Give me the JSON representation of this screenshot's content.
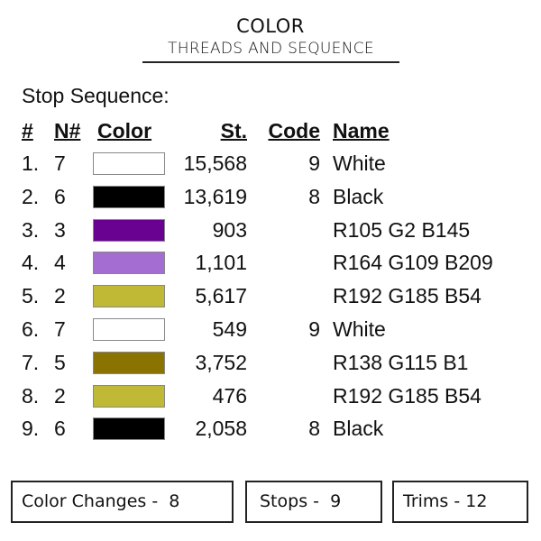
{
  "header": {
    "title": "COLOR",
    "subtitle": "THREADS AND SEQUENCE"
  },
  "section_label": "Stop Sequence:",
  "columns": {
    "num": "#",
    "n": "N#",
    "color": "Color",
    "stitches": "St.",
    "code": "Code",
    "name": "Name"
  },
  "rows": [
    {
      "num": "1.",
      "n": "7",
      "color": "#FFFFFF",
      "stitches": "15,568",
      "code": "9",
      "name": "White"
    },
    {
      "num": "2.",
      "n": "6",
      "color": "#000000",
      "stitches": "13,619",
      "code": "8",
      "name": "Black"
    },
    {
      "num": "3.",
      "n": "3",
      "color": "#690291",
      "stitches": "903",
      "code": "",
      "name": "R105 G2 B145"
    },
    {
      "num": "4.",
      "n": "4",
      "color": "#A46DD1",
      "stitches": "1,101",
      "code": "",
      "name": "R164 G109 B209"
    },
    {
      "num": "5.",
      "n": "2",
      "color": "#C0B936",
      "stitches": "5,617",
      "code": "",
      "name": "R192 G185 B54"
    },
    {
      "num": "6.",
      "n": "7",
      "color": "#FFFFFF",
      "stitches": "549",
      "code": "9",
      "name": "White"
    },
    {
      "num": "7.",
      "n": "5",
      "color": "#8A7301",
      "stitches": "3,752",
      "code": "",
      "name": "R138 G115 B1"
    },
    {
      "num": "8.",
      "n": "2",
      "color": "#C0B936",
      "stitches": "476",
      "code": "",
      "name": "R192 G185 B54"
    },
    {
      "num": "9.",
      "n": "6",
      "color": "#000000",
      "stitches": "2,058",
      "code": "8",
      "name": "Black"
    }
  ],
  "summary": {
    "color_changes": "Color Changes -  8",
    "stops": "Stops -  9",
    "trims": "Trims - 12"
  }
}
